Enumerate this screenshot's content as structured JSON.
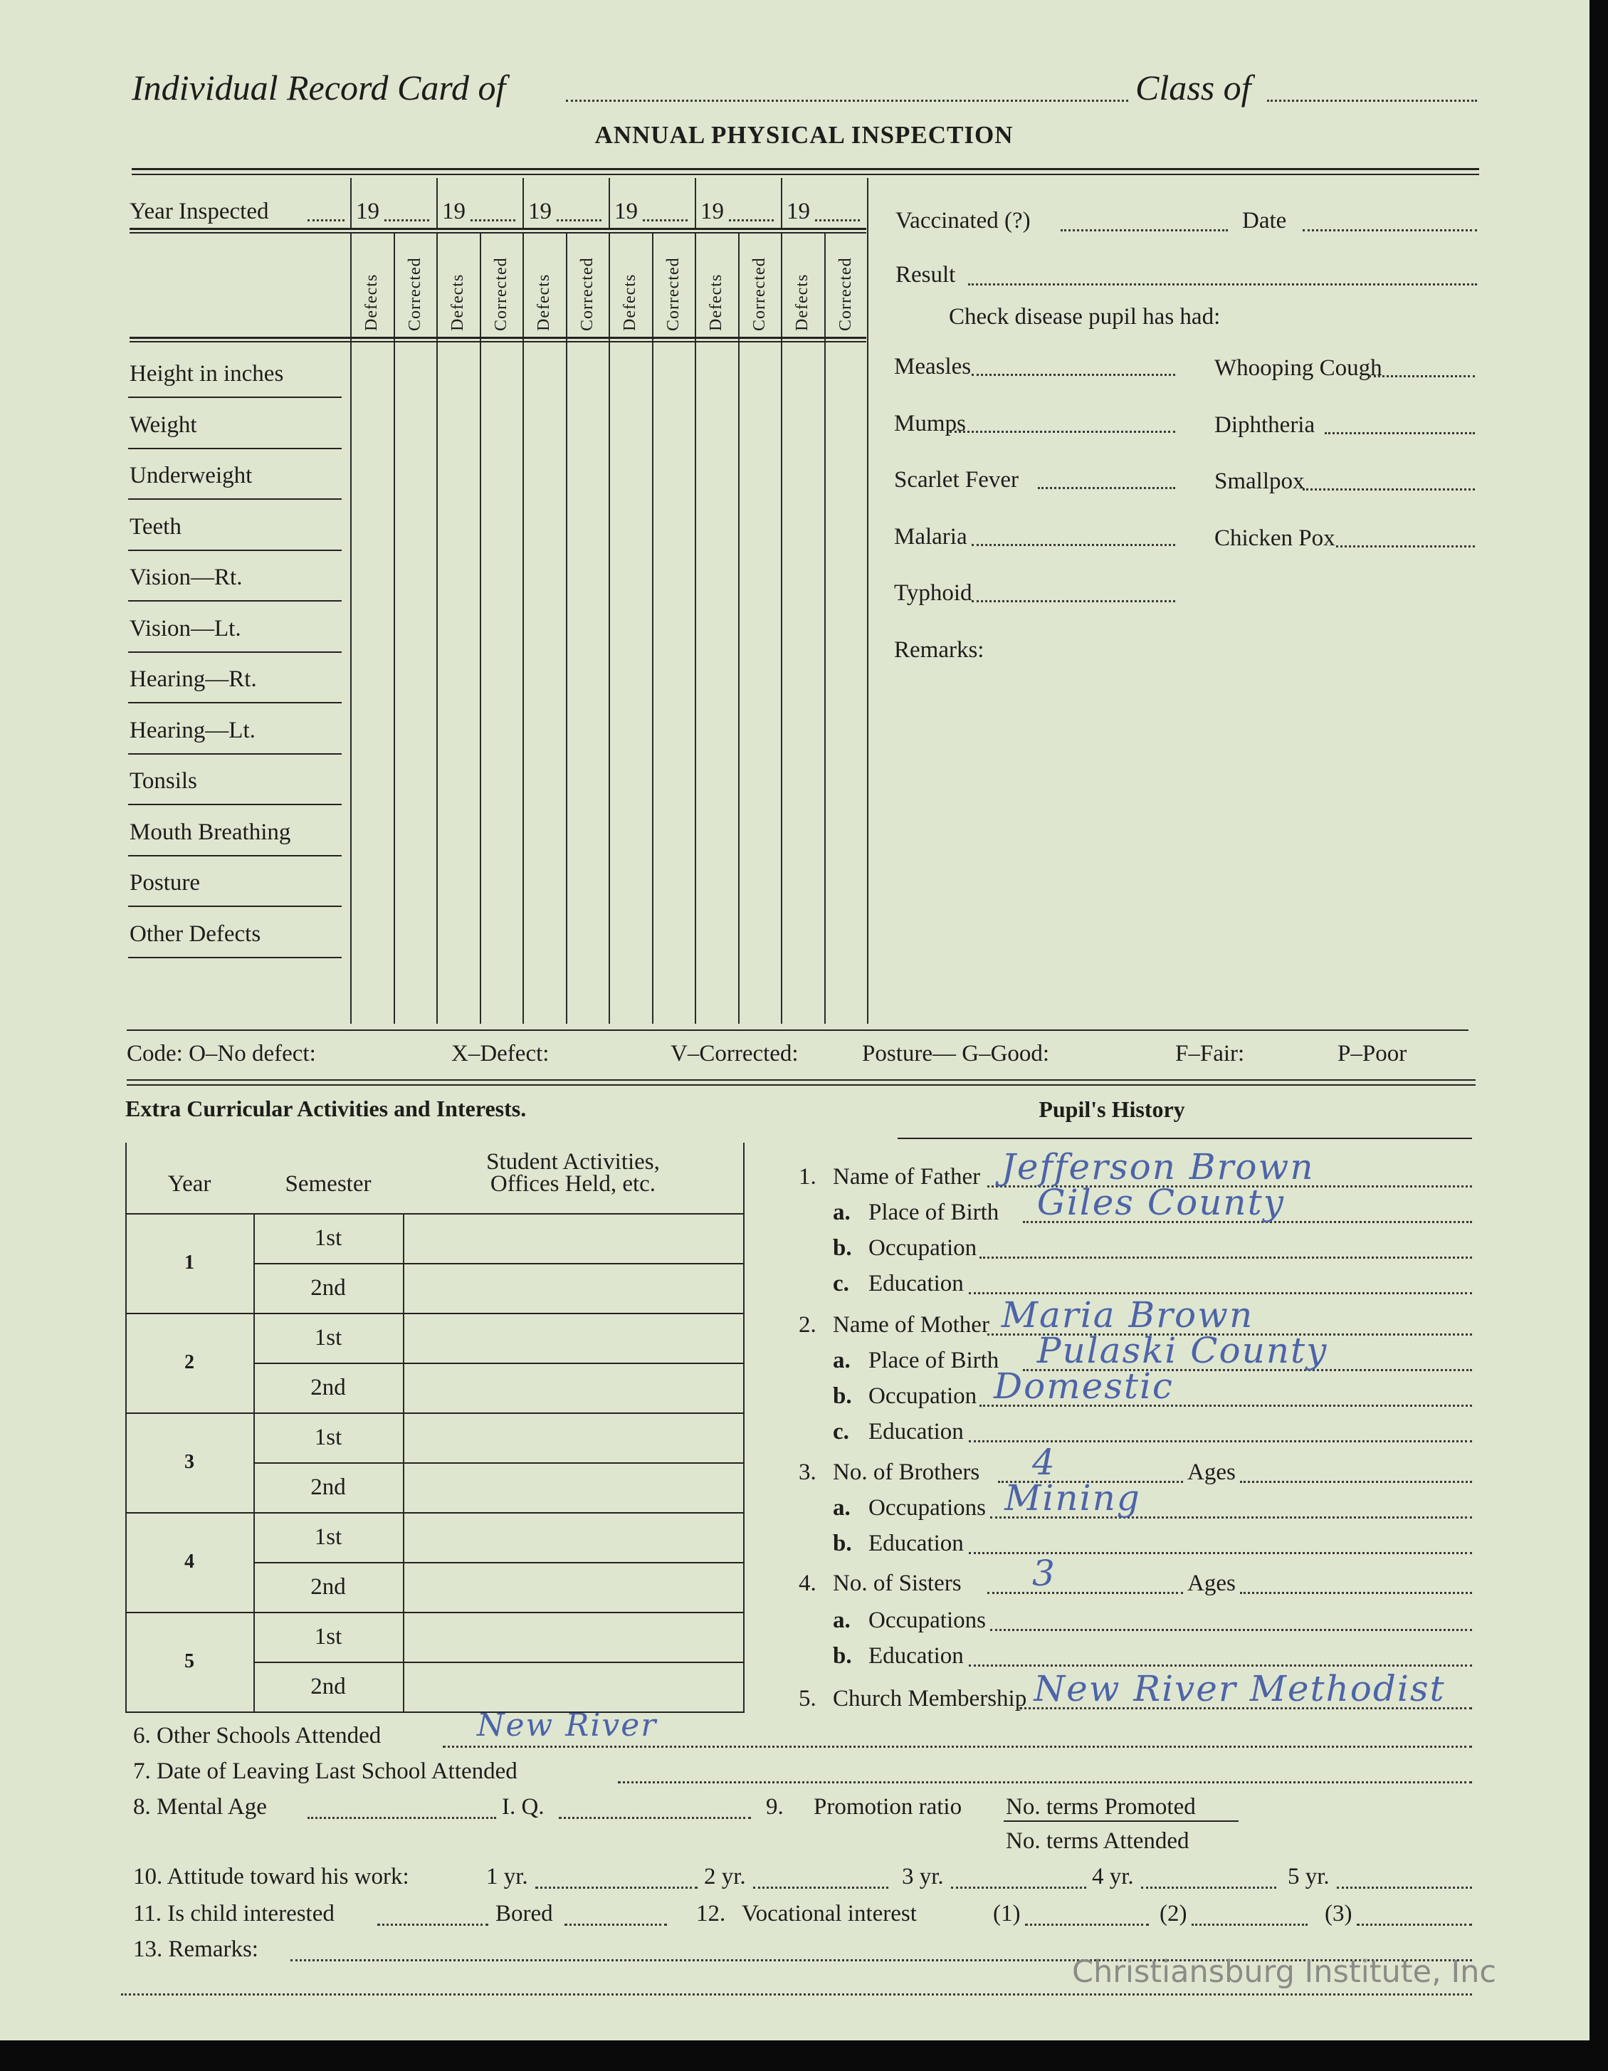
{
  "header": {
    "record_card_label": "Individual Record Card of",
    "class_label": "Class of",
    "title": "ANNUAL PHYSICAL INSPECTION"
  },
  "physical": {
    "year_label": "Year Inspected",
    "years": [
      "19",
      "19",
      "19",
      "19",
      "19",
      "19"
    ],
    "col_defects": "Defects",
    "col_corrected": "Corrected",
    "rows": [
      "Height in inches",
      "Weight",
      "Underweight",
      "Teeth",
      "Vision—Rt.",
      "Vision—Lt.",
      "Hearing—Rt.",
      "Hearing—Lt.",
      "Tonsils",
      "Mouth Breathing",
      "Posture",
      "Other Defects"
    ]
  },
  "vaccination": {
    "vaccinated": "Vaccinated (?)",
    "date": "Date",
    "result": "Result",
    "check": "Check disease pupil has had:",
    "diseases_left": [
      "Measles",
      "Mumps",
      "Scarlet Fever",
      "Malaria",
      "Typhoid"
    ],
    "diseases_right": [
      "Whooping Cough",
      "Diphtheria",
      "Smallpox",
      "Chicken Pox"
    ],
    "remarks": "Remarks:"
  },
  "code": {
    "code": "Code:  O–No defect:",
    "x": "X–Defect:",
    "v": "V–Corrected:",
    "posture": "Posture— G–Good:",
    "f": "F–Fair:",
    "p": "P–Poor"
  },
  "activities": {
    "heading": "Extra Curricular Activities and Interests.",
    "col_year": "Year",
    "col_semester": "Semester",
    "col_activities_1": "Student Activities,",
    "col_activities_2": "Offices Held, etc.",
    "years": [
      "1",
      "2",
      "3",
      "4",
      "5"
    ],
    "sem1": "1st",
    "sem2": "2nd"
  },
  "history": {
    "heading": "Pupil's History",
    "items": [
      {
        "num": "1.",
        "label": "Name of Father",
        "value": "Jefferson Brown"
      },
      {
        "num": "a.",
        "label": "Place of Birth",
        "value": "Giles County"
      },
      {
        "num": "b.",
        "label": "Occupation",
        "value": ""
      },
      {
        "num": "c.",
        "label": "Education",
        "value": ""
      },
      {
        "num": "2.",
        "label": "Name of Mother",
        "value": "Maria Brown"
      },
      {
        "num": "a.",
        "label": "Place of Birth",
        "value": "Pulaski County"
      },
      {
        "num": "b.",
        "label": "Occupation",
        "value": "Domestic"
      },
      {
        "num": "c.",
        "label": "Education",
        "value": ""
      },
      {
        "num": "3.",
        "label": "No. of Brothers",
        "value": "4",
        "ages": "Ages"
      },
      {
        "num": "a.",
        "label": "Occupations",
        "value": "Mining"
      },
      {
        "num": "b.",
        "label": "Education",
        "value": ""
      },
      {
        "num": "4.",
        "label": "No. of Sisters",
        "value": "3",
        "ages": "Ages"
      },
      {
        "num": "a.",
        "label": "Occupations",
        "value": ""
      },
      {
        "num": "b.",
        "label": "Education",
        "value": ""
      },
      {
        "num": "5.",
        "label": "Church Membership",
        "value": "New River Methodist"
      }
    ]
  },
  "bottom": {
    "other_schools": "6.  Other Schools Attended",
    "other_schools_value": "New River",
    "date_leaving": "7.  Date of Leaving Last School Attended",
    "mental_age": "8.  Mental Age",
    "iq": "I. Q.",
    "nine": "9.",
    "promotion": "Promotion ratio",
    "promoted": "No. terms Promoted",
    "attended": "No. terms Attended",
    "attitude": "10.  Attitude toward his work:",
    "yr1": "1 yr.",
    "yr2": "2 yr.",
    "yr3": "3 yr.",
    "yr4": "4 yr.",
    "yr5": "5 yr.",
    "interested": "11.  Is child interested",
    "bored": "Bored",
    "twelve": "12.",
    "vocational": "Vocational interest",
    "v1": "(1)",
    "v2": "(2)",
    "v3": "(3)",
    "remarks": "13.  Remarks:"
  },
  "watermark": "Christiansburg Institute, Inc"
}
